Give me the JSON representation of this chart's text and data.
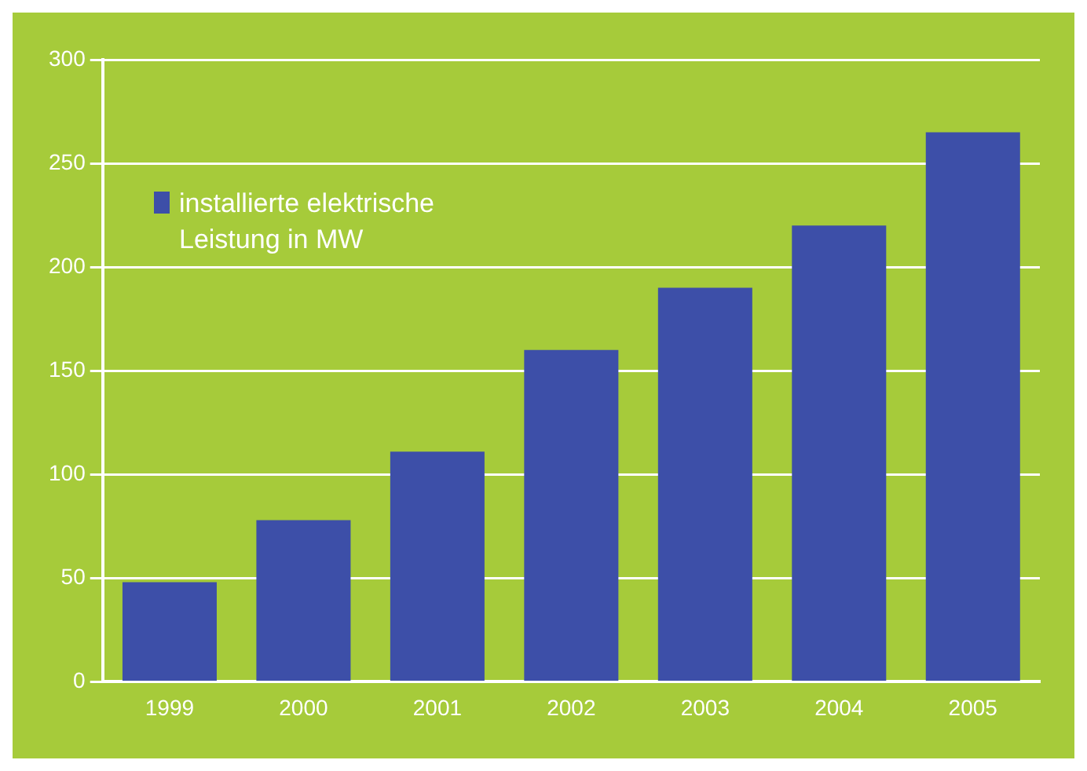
{
  "chart_data": {
    "type": "bar",
    "categories": [
      "1999",
      "2000",
      "2001",
      "2002",
      "2003",
      "2004",
      "2005"
    ],
    "series": [
      {
        "name": "installierte elektrische Leistung in MW",
        "color": "#3d4fa8",
        "values": [
          48,
          78,
          111,
          160,
          190,
          220,
          265
        ]
      }
    ],
    "ylim": [
      0,
      300
    ],
    "yticks": [
      0,
      50,
      100,
      150,
      200,
      250,
      300
    ],
    "grid": "y",
    "legend": "top left"
  }
}
